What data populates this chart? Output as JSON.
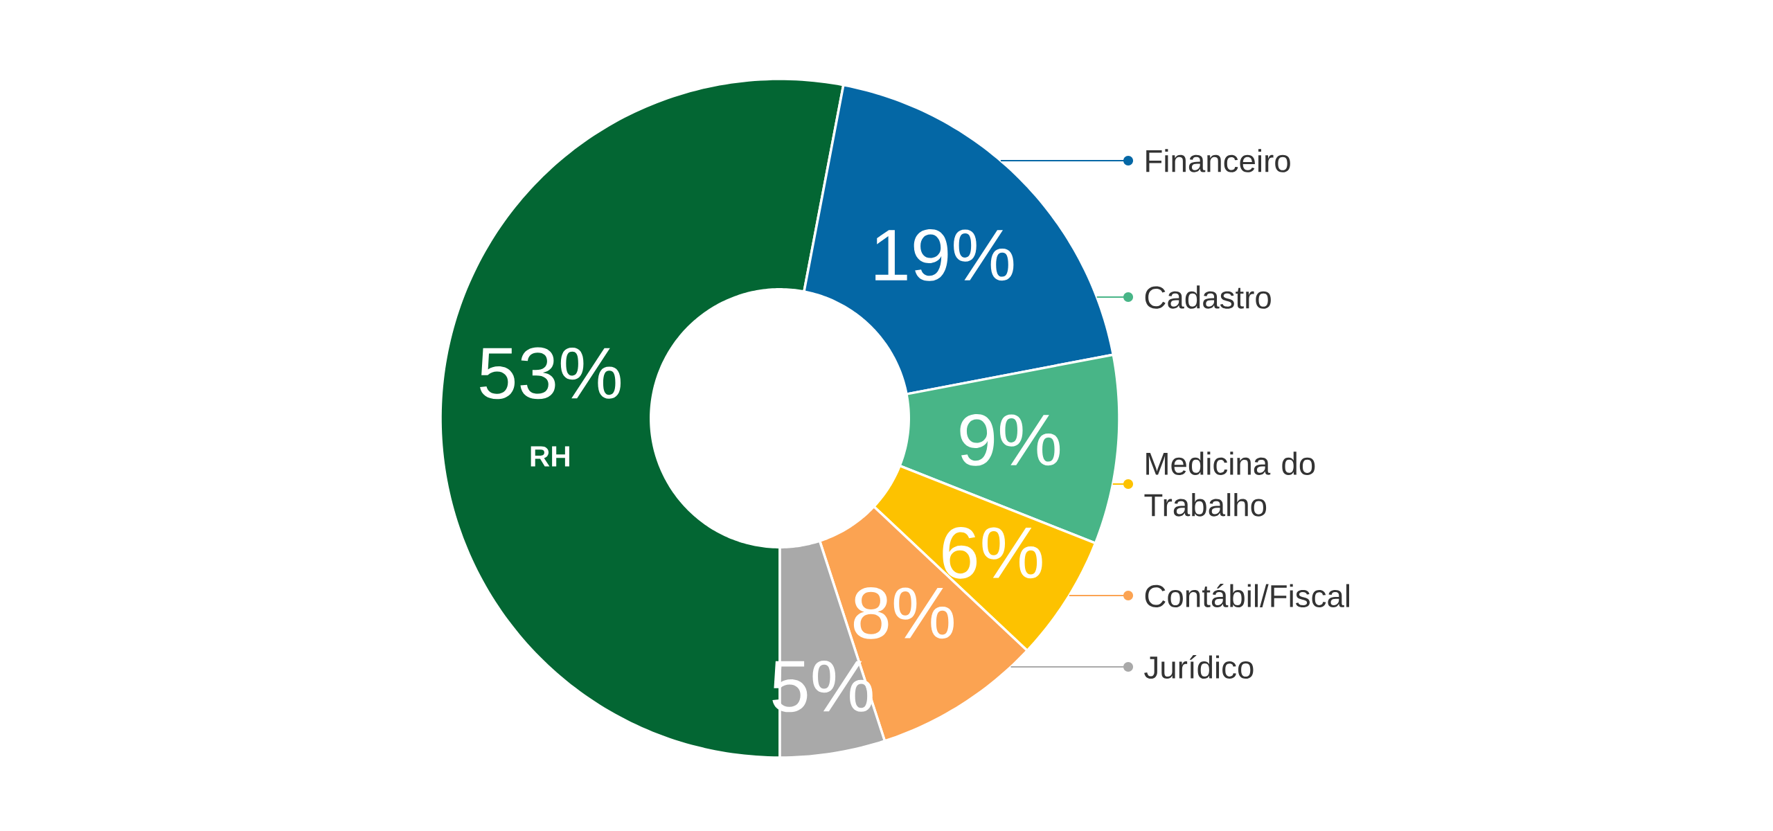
{
  "chart_data": {
    "type": "donut",
    "categories": [
      "RH",
      "Financeiro",
      "Cadastro",
      "Medicina do Trabalho",
      "Contábil/Fiscal",
      "Jurídico"
    ],
    "values": [
      53,
      19,
      9,
      6,
      8,
      5
    ],
    "value_labels": [
      "53%",
      "19%",
      "9%",
      "6%",
      "8%",
      "5%"
    ],
    "colors": [
      "#036633",
      "#0467a5",
      "#48b587",
      "#fdc200",
      "#fba352",
      "#a9a9a9"
    ],
    "legend": "right"
  }
}
